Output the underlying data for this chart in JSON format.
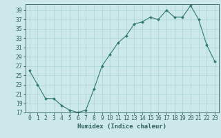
{
  "x": [
    0,
    1,
    2,
    3,
    4,
    5,
    6,
    7,
    8,
    9,
    10,
    11,
    12,
    13,
    14,
    15,
    16,
    17,
    18,
    19,
    20,
    21,
    22,
    23
  ],
  "y": [
    26,
    23,
    20,
    20,
    18.5,
    17.5,
    17,
    17.5,
    22,
    27,
    29.5,
    32,
    33.5,
    36,
    36.5,
    37.5,
    37,
    39,
    37.5,
    37.5,
    40,
    37,
    31.5,
    28
  ],
  "xlabel": "Humidex (Indice chaleur)",
  "ylim": [
    17,
    40
  ],
  "xlim": [
    -0.5,
    23.5
  ],
  "yticks": [
    17,
    19,
    21,
    23,
    25,
    27,
    29,
    31,
    33,
    35,
    37,
    39
  ],
  "xticks": [
    0,
    1,
    2,
    3,
    4,
    5,
    6,
    7,
    8,
    9,
    10,
    11,
    12,
    13,
    14,
    15,
    16,
    17,
    18,
    19,
    20,
    21,
    22,
    23
  ],
  "line_color": "#2d7a6a",
  "marker_color": "#2d7a6a",
  "bg_color": "#cce8ea",
  "grid_color": "#aad4d6",
  "label_color": "#2d6060",
  "tick_color": "#2d6060",
  "xlabel_fontsize": 6.5,
  "tick_fontsize": 5.8
}
